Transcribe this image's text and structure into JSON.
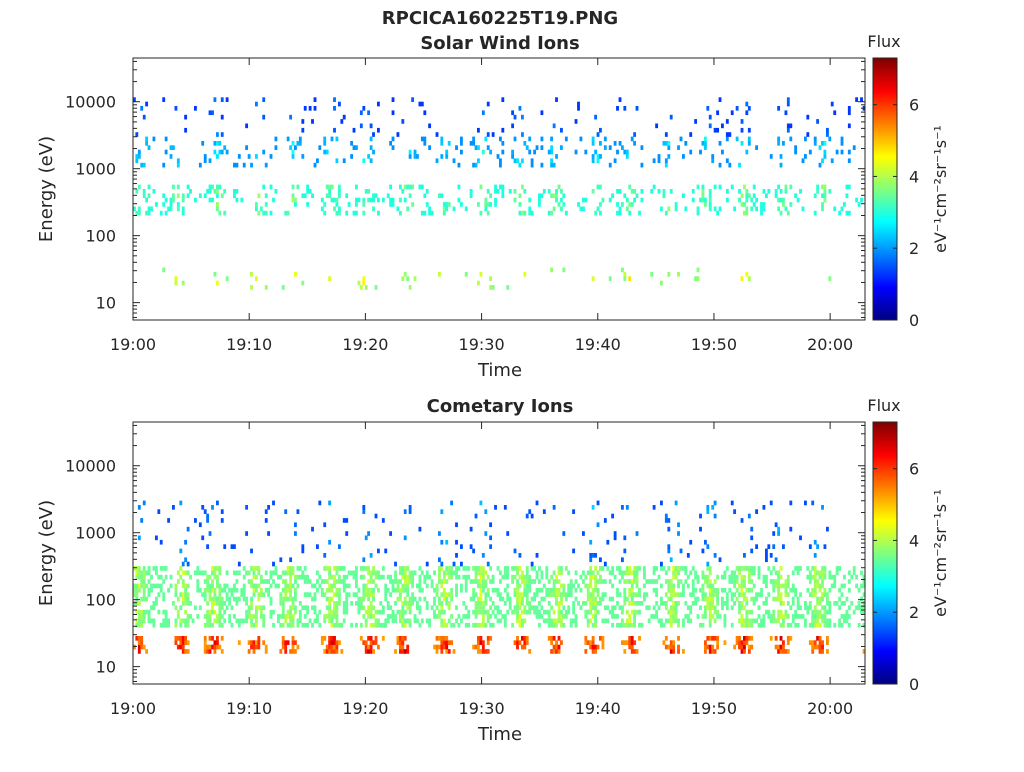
{
  "chart_data": [
    {
      "type": "heatmap",
      "suptitle": "RPCICA160225T19.PNG",
      "title": "Solar Wind Ions",
      "xlabel": "Time",
      "ylabel": "Energy (eV)",
      "x_ticks": [
        "19:00",
        "19:10",
        "19:20",
        "19:30",
        "19:40",
        "19:50",
        "20:00"
      ],
      "x_range_minutes": [
        0,
        63
      ],
      "y_scale": "log",
      "y_ticks": [
        10,
        100,
        1000,
        10000
      ],
      "y_tick_labels": [
        "10",
        "100",
        "1000",
        "10000"
      ],
      "y_range": [
        5.5,
        45000
      ],
      "grid": false,
      "colorbar": {
        "title": "Flux",
        "label": "eV⁻¹cm⁻²sr⁻¹s⁻¹",
        "ticks": [
          0,
          2,
          4,
          6
        ],
        "range": [
          0,
          7.3
        ],
        "colormap": "jet"
      },
      "observed_bands": [
        {
          "energy_eV": [
            15,
            35
          ],
          "flux": [
            3,
            5
          ],
          "density": "sparse, periodic bursts"
        },
        {
          "energy_eV": [
            200,
            600
          ],
          "flux": [
            2.5,
            4
          ],
          "density": "moderate"
        },
        {
          "energy_eV": [
            1000,
            3000
          ],
          "flux": [
            1.5,
            3
          ],
          "density": "scattered"
        },
        {
          "energy_eV": [
            3000,
            12000
          ],
          "flux": [
            1,
            2
          ],
          "density": "sparse"
        }
      ]
    },
    {
      "type": "heatmap",
      "title": "Cometary Ions",
      "xlabel": "Time",
      "ylabel": "Energy (eV)",
      "x_ticks": [
        "19:00",
        "19:10",
        "19:20",
        "19:30",
        "19:40",
        "19:50",
        "20:00"
      ],
      "x_range_minutes": [
        0,
        63
      ],
      "y_scale": "log",
      "y_ticks": [
        10,
        100,
        1000,
        10000
      ],
      "y_tick_labels": [
        "10",
        "100",
        "1000",
        "10000"
      ],
      "y_range": [
        5.5,
        45000
      ],
      "grid": false,
      "colorbar": {
        "title": "Flux",
        "label": "eV⁻¹cm⁻²sr⁻¹s⁻¹",
        "ticks": [
          0,
          2,
          4,
          6
        ],
        "range": [
          0,
          7.3
        ],
        "colormap": "jet"
      },
      "observed_bands": [
        {
          "energy_eV": [
            15,
            30
          ],
          "flux": [
            4.5,
            7
          ],
          "density": "dense, periodic bursts"
        },
        {
          "energy_eV": [
            40,
            300
          ],
          "flux": [
            3,
            4.5
          ],
          "density": "dense"
        },
        {
          "energy_eV": [
            300,
            3000
          ],
          "flux": [
            1,
            2.5
          ],
          "density": "sparse"
        }
      ]
    }
  ],
  "texts": {
    "suptitle": "RPCICA160225T19.PNG",
    "panels": [
      {
        "title": "Solar Wind Ions",
        "xlabel": "Time",
        "ylabel": "Energy (eV)",
        "cb_title": "Flux"
      },
      {
        "title": "Cometary Ions",
        "xlabel": "Time",
        "ylabel": "Energy (eV)",
        "cb_title": "Flux"
      }
    ]
  }
}
